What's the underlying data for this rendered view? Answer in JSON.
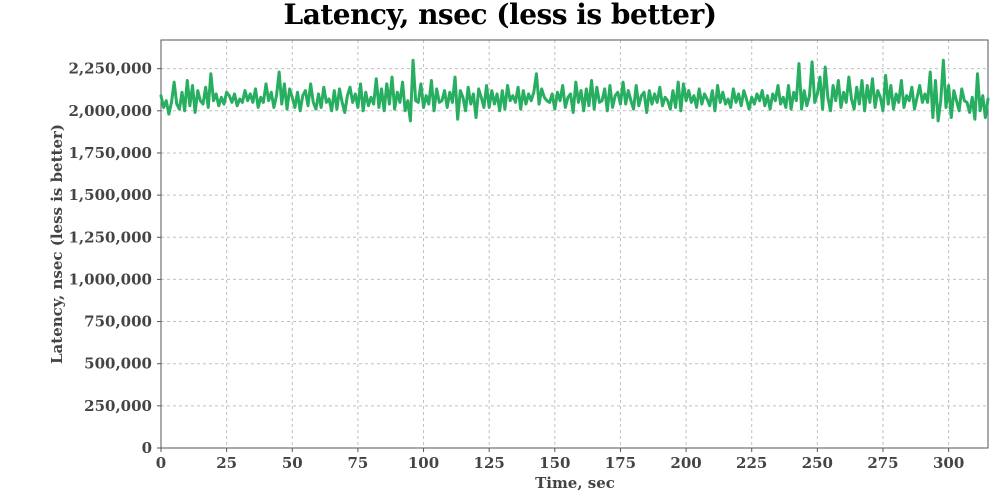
{
  "chart_data": {
    "type": "line",
    "title": "Latency, nsec (less is better)",
    "xlabel": "Time, sec",
    "ylabel": "Latency, nsec (less is better)",
    "xlim": [
      0,
      315
    ],
    "ylim": [
      0,
      2420000
    ],
    "x_ticks": [
      0,
      25,
      50,
      75,
      100,
      125,
      150,
      175,
      200,
      225,
      250,
      275,
      300
    ],
    "x_tick_labels": [
      "0",
      "25",
      "50",
      "75",
      "100",
      "125",
      "150",
      "175",
      "200",
      "225",
      "250",
      "275",
      "300"
    ],
    "y_ticks": [
      0,
      250000,
      500000,
      750000,
      1000000,
      1250000,
      1500000,
      1750000,
      2000000,
      2250000
    ],
    "y_tick_labels": [
      "0",
      "250,000",
      "500,000",
      "750,000",
      "1,000,000",
      "1,250,000",
      "1,500,000",
      "1,750,000",
      "2,000,000",
      "2,250,000"
    ],
    "grid": true,
    "series": [
      {
        "color": "#27ae60",
        "x_start": 0,
        "x_step": 1,
        "values": [
          2090000,
          2020000,
          2060000,
          1980000,
          2050000,
          2170000,
          2040000,
          2010000,
          2110000,
          2000000,
          2180000,
          2030000,
          2150000,
          1990000,
          2120000,
          2060000,
          2040000,
          2140000,
          2020000,
          2220000,
          2060000,
          2100000,
          2030000,
          2080000,
          2040000,
          2110000,
          2090000,
          2050000,
          2100000,
          2030000,
          2070000,
          2050000,
          2120000,
          2060000,
          2100000,
          2050000,
          2130000,
          2020000,
          2080000,
          2050000,
          2160000,
          2060000,
          2110000,
          2020000,
          2090000,
          2230000,
          2040000,
          2160000,
          2010000,
          2130000,
          2080000,
          2020000,
          2110000,
          2000000,
          2090000,
          2120000,
          2030000,
          2160000,
          2050000,
          2010000,
          2100000,
          2020000,
          2140000,
          2050000,
          2070000,
          2000000,
          2120000,
          2010000,
          2130000,
          2050000,
          1990000,
          2090000,
          2140000,
          2050000,
          2100000,
          2020000,
          2160000,
          2000000,
          2110000,
          2030000,
          2080000,
          2040000,
          2190000,
          2020000,
          2130000,
          2000000,
          2160000,
          2040000,
          2200000,
          2010000,
          2110000,
          2050000,
          2170000,
          2000000,
          2060000,
          1940000,
          2300000,
          2060000,
          2050000,
          2160000,
          2020000,
          2090000,
          2040000,
          2180000,
          2000000,
          2130000,
          2050000,
          2060000,
          2120000,
          2020000,
          2110000,
          2050000,
          2200000,
          1950000,
          2120000,
          2080000,
          2000000,
          2140000,
          2040000,
          2100000,
          1960000,
          2130000,
          2080000,
          2020000,
          2150000,
          2020000,
          2120000,
          2040000,
          2100000,
          2000000,
          2120000,
          2010000,
          2150000,
          2060000,
          2090000,
          2050000,
          2140000,
          2010000,
          2120000,
          2040000,
          2100000,
          2060000,
          2110000,
          2220000,
          2040000,
          2130000,
          2080000,
          2060000,
          2050000,
          2100000,
          2010000,
          2110000,
          2060000,
          2150000,
          2020000,
          2080000,
          2100000,
          1990000,
          2170000,
          2050000,
          2120000,
          2000000,
          2130000,
          2030000,
          2180000,
          2010000,
          2140000,
          2050000,
          2060000,
          2130000,
          2000000,
          2150000,
          2020000,
          2090000,
          2110000,
          2040000,
          2170000,
          2040000,
          2120000,
          2060000,
          2010000,
          2150000,
          2030000,
          2090000,
          2110000,
          1990000,
          2120000,
          2040000,
          2100000,
          2050000,
          2140000,
          2030000,
          2080000,
          2060000,
          2010000,
          2120000,
          2020000,
          2170000,
          2000000,
          2160000,
          2060000,
          2120000,
          2050000,
          2090000,
          2020000,
          2130000,
          2040000,
          2100000,
          2070000,
          2030000,
          2120000,
          2000000,
          2150000,
          2050000,
          2110000,
          2040000,
          2070000,
          2020000,
          2130000,
          2050000,
          2100000,
          2030000,
          2120000,
          2070000,
          2010000,
          2080000,
          2040000,
          2100000,
          2060000,
          2120000,
          2030000,
          2090000,
          2010000,
          2100000,
          2060000,
          2150000,
          2040000,
          2080000,
          2020000,
          2150000,
          2010000,
          2110000,
          2060000,
          2280000,
          2010000,
          2120000,
          2030000,
          2090000,
          2290000,
          2050000,
          2100000,
          2200000,
          2010000,
          2260000,
          2080000,
          2000000,
          2150000,
          2060000,
          2180000,
          2020000,
          2110000,
          2050000,
          2200000,
          2070000,
          2010000,
          2140000,
          2040000,
          2180000,
          2000000,
          2150000,
          2050000,
          2190000,
          2020000,
          2120000,
          2080000,
          2000000,
          2210000,
          2040000,
          2150000,
          2010000,
          2100000,
          2050000,
          2180000,
          2020000,
          2090000,
          2060000,
          2140000,
          2010000,
          2080000,
          2150000,
          2050000,
          2100000,
          2050000,
          2230000,
          1960000,
          2180000,
          1940000,
          2060000,
          2300000,
          2020000,
          2150000,
          1960000,
          2120000,
          2060000,
          2000000,
          2130000,
          2060000,
          2050000,
          1990000,
          2080000,
          1950000,
          2220000,
          2000000,
          2090000,
          1960000,
          2070000
        ]
      }
    ]
  }
}
